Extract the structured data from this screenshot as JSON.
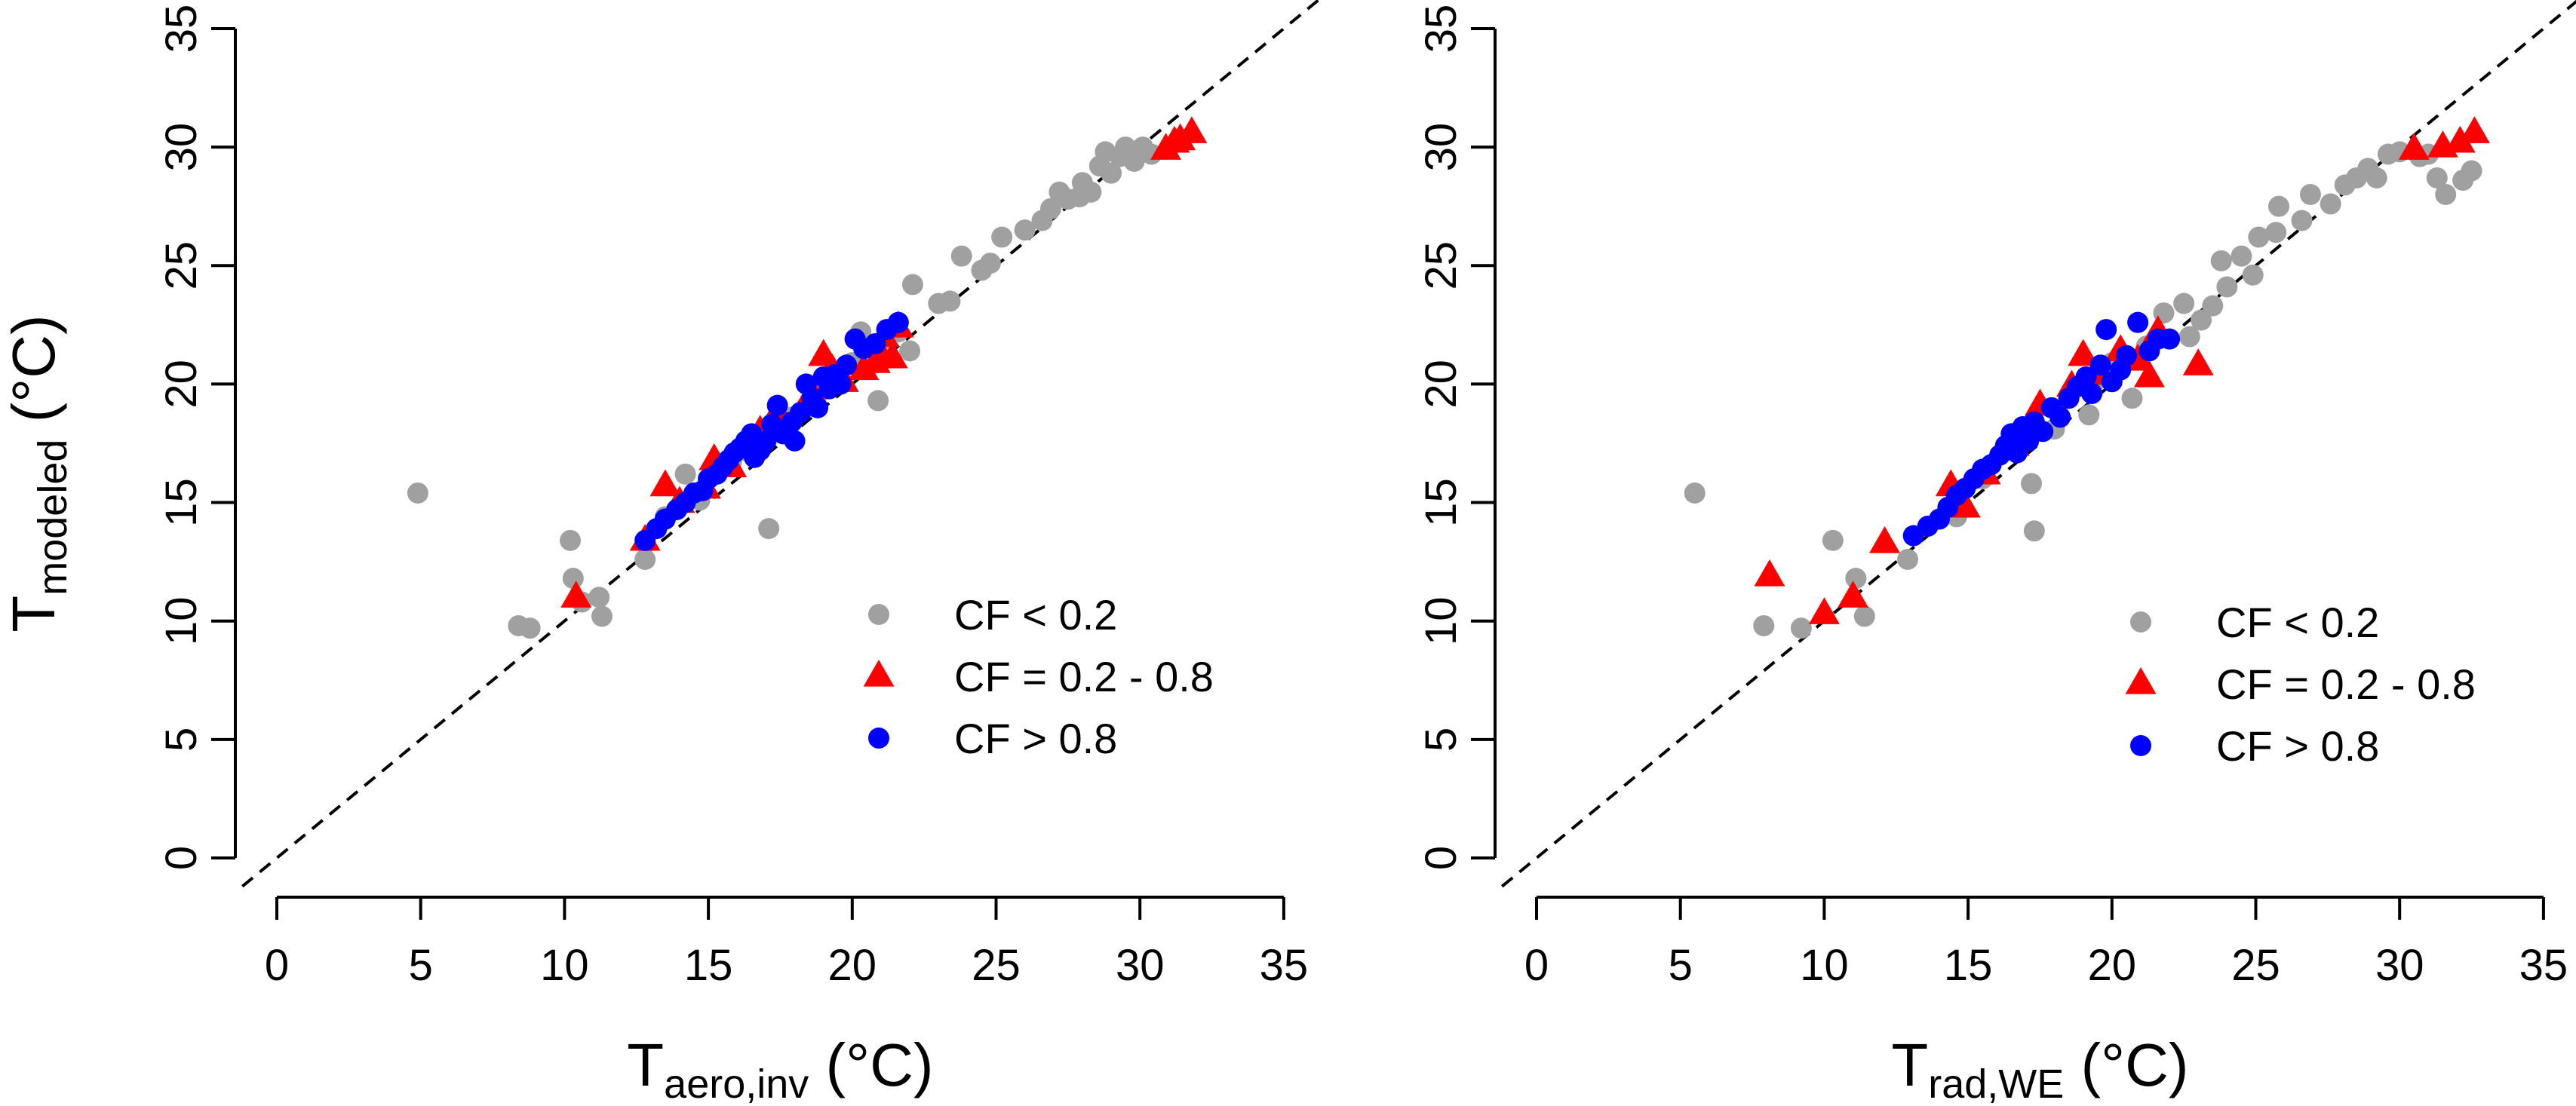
{
  "chart_data": [
    {
      "type": "scatter",
      "xlabel": {
        "main": "T",
        "sub": "aero,inv",
        "unit": " (°C)"
      },
      "ylabel": {
        "main": "T",
        "sub": "modeled",
        "unit": " (°C)"
      },
      "xlim": [
        0,
        35
      ],
      "ylim": [
        0,
        35
      ],
      "xticks": [
        "0",
        "5",
        "10",
        "15",
        "20",
        "25",
        "30",
        "35"
      ],
      "yticks": [
        "0",
        "5",
        "10",
        "15",
        "20",
        "25",
        "30",
        "35"
      ],
      "reference_line": "1:1 dashed",
      "legend": {
        "placement": "bottom-right"
      },
      "series": [
        {
          "name": "CF < 0.2",
          "color": "#a0a0a0",
          "marker": "circle",
          "points": [
            [
              4.9,
              15.4
            ],
            [
              8.4,
              9.8
            ],
            [
              8.8,
              9.7
            ],
            [
              10.2,
              13.4
            ],
            [
              10.3,
              11.8
            ],
            [
              10.6,
              10.8
            ],
            [
              11.2,
              11.0
            ],
            [
              11.3,
              10.2
            ],
            [
              12.8,
              12.6
            ],
            [
              13.5,
              14.4
            ],
            [
              14.2,
              16.2
            ],
            [
              14.7,
              15.1
            ],
            [
              15.8,
              16.7
            ],
            [
              16.3,
              17.2
            ],
            [
              17.1,
              13.9
            ],
            [
              17.9,
              18.6
            ],
            [
              18.4,
              19.0
            ],
            [
              18.9,
              19.7
            ],
            [
              19.5,
              20.4
            ],
            [
              20.0,
              20.9
            ],
            [
              20.3,
              22.2
            ],
            [
              20.9,
              19.3
            ],
            [
              21.0,
              21.5
            ],
            [
              21.6,
              22.2
            ],
            [
              22.0,
              21.4
            ],
            [
              22.1,
              24.2
            ],
            [
              23.0,
              23.4
            ],
            [
              23.4,
              23.5
            ],
            [
              23.8,
              25.4
            ],
            [
              24.5,
              24.8
            ],
            [
              24.8,
              25.1
            ],
            [
              25.2,
              26.2
            ],
            [
              26.0,
              26.5
            ],
            [
              26.6,
              26.9
            ],
            [
              26.9,
              27.4
            ],
            [
              27.2,
              28.1
            ],
            [
              27.5,
              27.8
            ],
            [
              27.9,
              27.9
            ],
            [
              28.0,
              28.5
            ],
            [
              28.3,
              28.1
            ],
            [
              28.6,
              29.2
            ],
            [
              28.8,
              29.8
            ],
            [
              29.0,
              28.9
            ],
            [
              29.3,
              29.6
            ],
            [
              29.5,
              30.0
            ],
            [
              29.8,
              29.4
            ],
            [
              30.1,
              30.0
            ],
            [
              30.4,
              29.7
            ]
          ]
        },
        {
          "name": "CF = 0.2 - 0.8",
          "color": "#ff0000",
          "marker": "triangle",
          "points": [
            [
              10.4,
              11.0
            ],
            [
              12.8,
              13.4
            ],
            [
              13.5,
              15.7
            ],
            [
              14.0,
              15.0
            ],
            [
              14.9,
              15.6
            ],
            [
              15.2,
              16.8
            ],
            [
              15.8,
              16.5
            ],
            [
              16.8,
              18.0
            ],
            [
              17.4,
              18.8
            ],
            [
              18.6,
              19.6
            ],
            [
              19.0,
              21.2
            ],
            [
              19.3,
              20.6
            ],
            [
              19.7,
              20.1
            ],
            [
              20.4,
              20.6
            ],
            [
              20.8,
              20.9
            ],
            [
              21.0,
              21.2
            ],
            [
              21.1,
              22.0
            ],
            [
              21.4,
              21.1
            ],
            [
              21.6,
              22.4
            ],
            [
              30.9,
              29.9
            ],
            [
              31.2,
              30.2
            ],
            [
              31.4,
              30.3
            ],
            [
              31.8,
              30.6
            ]
          ]
        },
        {
          "name": "CF > 0.8",
          "color": "#0000ff",
          "marker": "circle",
          "points": [
            [
              12.8,
              13.4
            ],
            [
              13.2,
              13.9
            ],
            [
              13.5,
              14.3
            ],
            [
              13.9,
              14.7
            ],
            [
              14.2,
              15.0
            ],
            [
              14.5,
              15.4
            ],
            [
              14.8,
              15.5
            ],
            [
              15.0,
              16.0
            ],
            [
              15.3,
              16.2
            ],
            [
              15.5,
              16.5
            ],
            [
              15.7,
              16.8
            ],
            [
              15.9,
              17.1
            ],
            [
              16.1,
              17.3
            ],
            [
              16.3,
              17.6
            ],
            [
              16.5,
              17.9
            ],
            [
              16.6,
              16.9
            ],
            [
              16.8,
              17.2
            ],
            [
              17.0,
              17.6
            ],
            [
              17.2,
              18.3
            ],
            [
              17.4,
              19.1
            ],
            [
              17.6,
              17.9
            ],
            [
              17.9,
              18.4
            ],
            [
              18.0,
              17.6
            ],
            [
              18.2,
              18.8
            ],
            [
              18.4,
              20.0
            ],
            [
              18.6,
              19.4
            ],
            [
              18.8,
              19.0
            ],
            [
              19.0,
              20.3
            ],
            [
              19.2,
              19.8
            ],
            [
              19.4,
              20.4
            ],
            [
              19.6,
              20.0
            ],
            [
              19.8,
              20.8
            ],
            [
              20.1,
              21.9
            ],
            [
              20.4,
              21.5
            ],
            [
              20.8,
              21.7
            ],
            [
              21.2,
              22.3
            ],
            [
              21.6,
              22.6
            ]
          ]
        }
      ]
    },
    {
      "type": "scatter",
      "xlabel": {
        "main": "T",
        "sub": "rad,WE",
        "unit": " (°C)"
      },
      "ylabel": {
        "main": "",
        "sub": "",
        "unit": ""
      },
      "xlim": [
        0,
        35
      ],
      "ylim": [
        0,
        35
      ],
      "xticks": [
        "0",
        "5",
        "10",
        "15",
        "20",
        "25",
        "30",
        "35"
      ],
      "yticks": [
        "0",
        "5",
        "10",
        "15",
        "20",
        "25",
        "30",
        "35"
      ],
      "reference_line": "1:1 dashed",
      "legend": {
        "placement": "bottom-right"
      },
      "series": [
        {
          "name": "CF < 0.2",
          "color": "#a0a0a0",
          "marker": "circle",
          "points": [
            [
              5.5,
              15.4
            ],
            [
              7.9,
              9.8
            ],
            [
              9.2,
              9.7
            ],
            [
              10.3,
              13.4
            ],
            [
              11.1,
              11.8
            ],
            [
              11.4,
              10.2
            ],
            [
              12.9,
              12.6
            ],
            [
              14.6,
              14.4
            ],
            [
              15.5,
              16.0
            ],
            [
              17.2,
              15.8
            ],
            [
              17.3,
              13.8
            ],
            [
              18.0,
              18.1
            ],
            [
              18.6,
              19.7
            ],
            [
              19.2,
              18.7
            ],
            [
              19.5,
              20.2
            ],
            [
              20.0,
              20.9
            ],
            [
              20.7,
              19.4
            ],
            [
              21.2,
              21.6
            ],
            [
              21.8,
              23.0
            ],
            [
              22.5,
              23.4
            ],
            [
              22.7,
              22.0
            ],
            [
              23.1,
              22.7
            ],
            [
              23.5,
              23.3
            ],
            [
              23.8,
              25.2
            ],
            [
              24.0,
              24.1
            ],
            [
              24.5,
              25.4
            ],
            [
              24.9,
              24.6
            ],
            [
              25.1,
              26.2
            ],
            [
              25.7,
              26.4
            ],
            [
              25.8,
              27.5
            ],
            [
              26.6,
              26.9
            ],
            [
              26.9,
              28.0
            ],
            [
              27.6,
              27.6
            ],
            [
              28.1,
              28.4
            ],
            [
              28.5,
              28.7
            ],
            [
              28.9,
              29.1
            ],
            [
              29.2,
              28.7
            ],
            [
              29.6,
              29.7
            ],
            [
              30.0,
              29.8
            ],
            [
              30.7,
              29.6
            ],
            [
              31.0,
              29.7
            ],
            [
              31.3,
              28.7
            ],
            [
              31.6,
              28.0
            ],
            [
              32.2,
              28.6
            ],
            [
              32.5,
              29.0
            ]
          ]
        },
        {
          "name": "CF = 0.2 - 0.8",
          "color": "#ff0000",
          "marker": "triangle",
          "points": [
            [
              8.1,
              11.9
            ],
            [
              10.0,
              10.3
            ],
            [
              11.0,
              11.0
            ],
            [
              12.1,
              13.3
            ],
            [
              14.4,
              15.7
            ],
            [
              14.9,
              14.8
            ],
            [
              15.6,
              16.2
            ],
            [
              16.6,
              17.4
            ],
            [
              17.5,
              19.1
            ],
            [
              18.6,
              19.9
            ],
            [
              19.0,
              21.2
            ],
            [
              19.5,
              20.4
            ],
            [
              20.3,
              21.4
            ],
            [
              20.9,
              21.0
            ],
            [
              21.3,
              20.3
            ],
            [
              21.6,
              22.2
            ],
            [
              23.0,
              20.8
            ],
            [
              30.5,
              29.9
            ],
            [
              31.5,
              30.0
            ],
            [
              32.1,
              30.2
            ],
            [
              32.6,
              30.6
            ]
          ]
        },
        {
          "name": "CF > 0.8",
          "color": "#0000ff",
          "marker": "circle",
          "points": [
            [
              13.1,
              13.6
            ],
            [
              13.6,
              14.0
            ],
            [
              14.0,
              14.3
            ],
            [
              14.3,
              14.8
            ],
            [
              14.6,
              15.3
            ],
            [
              14.9,
              15.6
            ],
            [
              15.2,
              16.0
            ],
            [
              15.5,
              16.4
            ],
            [
              15.8,
              16.6
            ],
            [
              16.1,
              17.0
            ],
            [
              16.3,
              17.4
            ],
            [
              16.5,
              17.9
            ],
            [
              16.7,
              17.1
            ],
            [
              16.9,
              18.2
            ],
            [
              17.1,
              17.6
            ],
            [
              17.3,
              18.4
            ],
            [
              17.6,
              18.0
            ],
            [
              17.9,
              19.0
            ],
            [
              18.2,
              18.6
            ],
            [
              18.5,
              19.4
            ],
            [
              18.8,
              19.9
            ],
            [
              19.1,
              20.3
            ],
            [
              19.3,
              19.6
            ],
            [
              19.6,
              20.8
            ],
            [
              19.8,
              22.3
            ],
            [
              20.0,
              20.1
            ],
            [
              20.3,
              20.6
            ],
            [
              20.5,
              21.2
            ],
            [
              20.9,
              22.6
            ],
            [
              21.3,
              21.4
            ],
            [
              21.6,
              21.9
            ],
            [
              22.0,
              21.9
            ]
          ]
        }
      ]
    }
  ]
}
